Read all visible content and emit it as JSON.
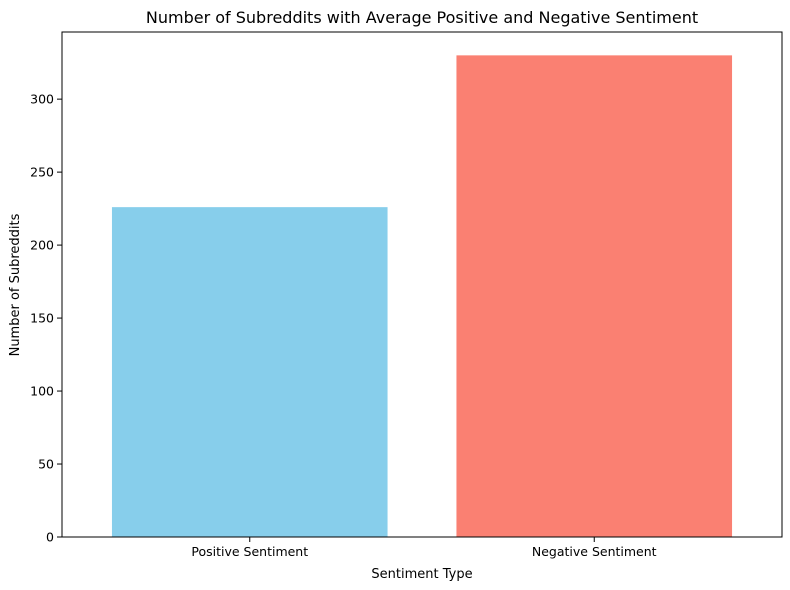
{
  "chart_data": {
    "type": "bar",
    "title": "Number of Subreddits with Average Positive and Negative Sentiment",
    "xlabel": "Sentiment Type",
    "ylabel": "Number of Subreddits",
    "categories": [
      "Positive Sentiment",
      "Negative Sentiment"
    ],
    "values": [
      226,
      330
    ],
    "colors": [
      "#87ceeb",
      "#fa8072"
    ],
    "ylim": [
      0,
      346
    ],
    "yticks": [
      0,
      50,
      100,
      150,
      200,
      250,
      300
    ],
    "grid": false,
    "legend": "none"
  }
}
